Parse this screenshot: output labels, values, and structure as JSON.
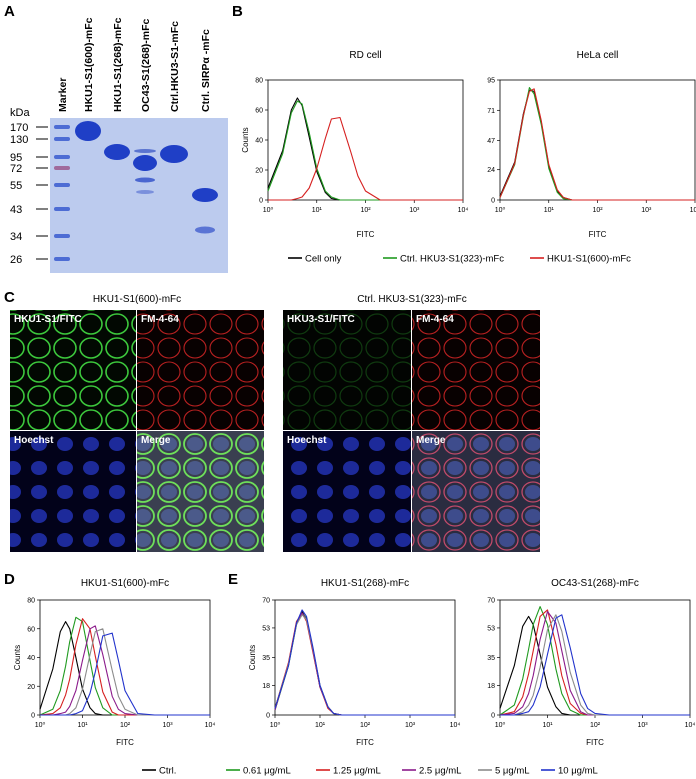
{
  "panel_labels": {
    "a": "A",
    "b": "B",
    "c": "C",
    "d": "D",
    "e": "E"
  },
  "gel": {
    "unit": "kDa",
    "markers": [
      "170",
      "130",
      "95",
      "72",
      "55",
      "43",
      "34",
      "26"
    ],
    "lanes": [
      "Marker",
      "HKU1-S1(600)-mFc",
      "HKU1-S1(268)-mFc",
      "OC43-S1(268)-mFc",
      "Ctrl.HKU3-S1-mFc",
      "Ctrl. SIRPα -mFc"
    ]
  },
  "microscopy": {
    "left_title": "HKU1-S1(600)-mFc",
    "right_title": "Ctrl. HKU3-S1(323)-mFc",
    "left_labels": [
      "HKU1-S1/FITC",
      "FM-4-64",
      "Hoechst",
      "Merge"
    ],
    "right_labels": [
      "HKU3-S1/FITC",
      "FM-4-64",
      "Hoechst",
      "Merge"
    ]
  },
  "chart_data": [
    {
      "type": "line",
      "title": "RD cell",
      "xlabel": "FITC",
      "ylabel": "Counts",
      "log_x": true,
      "x": [
        1,
        2,
        3,
        4,
        5,
        7,
        10,
        15,
        20,
        30,
        50,
        70,
        100,
        200,
        500,
        1000,
        10000
      ],
      "xlim": [
        1,
        10000
      ],
      "xticks": [
        {
          "value": 1,
          "label": "10⁰"
        },
        {
          "value": 10,
          "label": "10¹"
        },
        {
          "value": 100,
          "label": "10²"
        },
        {
          "value": 1000,
          "label": "10³"
        },
        {
          "value": 10000,
          "label": "10⁴"
        }
      ],
      "ylim": [
        0,
        80
      ],
      "yticks": [
        0,
        20,
        40,
        60,
        80
      ],
      "series": [
        {
          "name": "Cell only",
          "color": "#000000",
          "values": [
            8,
            33,
            60,
            68,
            63,
            42,
            19,
            5,
            1,
            0,
            0,
            0,
            0,
            0,
            0,
            0,
            0
          ]
        },
        {
          "name": "Ctrl. HKU3-S1(323)-mFc",
          "color": "#1f9a1f",
          "values": [
            6,
            31,
            58,
            66,
            64,
            45,
            21,
            6,
            2,
            0,
            0,
            0,
            0,
            0,
            0,
            0,
            0
          ]
        },
        {
          "name": "HKU1-S1(600)-mFc",
          "color": "#d62020",
          "values": [
            0,
            0,
            0,
            1,
            2,
            8,
            21,
            41,
            54,
            55,
            32,
            16,
            6,
            0,
            0,
            0,
            0
          ]
        }
      ]
    },
    {
      "type": "line",
      "title": "HeLa cell",
      "xlabel": "FITC",
      "log_x": true,
      "x": [
        1,
        2,
        3,
        4,
        5,
        7,
        10,
        15,
        20,
        30,
        50,
        70,
        100,
        200,
        500,
        1000,
        10000
      ],
      "xlim": [
        1,
        10000
      ],
      "xticks": [
        {
          "value": 1,
          "label": "10⁰"
        },
        {
          "value": 10,
          "label": "10¹"
        },
        {
          "value": 100,
          "label": "10²"
        },
        {
          "value": 1000,
          "label": "10³"
        },
        {
          "value": 10000,
          "label": "10⁴"
        }
      ],
      "ylim": [
        0,
        95
      ],
      "yticks": [
        0,
        24,
        47,
        71,
        95
      ],
      "series": [
        {
          "name": "Cell only",
          "color": "#000000",
          "values": [
            3,
            30,
            68,
            87,
            86,
            62,
            27,
            7,
            2,
            0,
            0,
            0,
            0,
            0,
            0,
            0,
            0
          ]
        },
        {
          "name": "Ctrl. HKU3-S1(323)-mFc",
          "color": "#1f9a1f",
          "values": [
            2,
            28,
            66,
            89,
            84,
            60,
            25,
            6,
            1,
            0,
            0,
            0,
            0,
            0,
            0,
            0,
            0
          ]
        },
        {
          "name": "HKU1-S1(600)-mFc",
          "color": "#d62020",
          "values": [
            2,
            29,
            67,
            86,
            88,
            63,
            28,
            8,
            2,
            0,
            0,
            0,
            0,
            0,
            0,
            0,
            0
          ]
        }
      ]
    },
    {
      "type": "line",
      "title": "HKU1-S1(600)-mFc",
      "xlabel": "FITC",
      "ylabel": "Counts",
      "log_x": true,
      "x": [
        1,
        2,
        3,
        4,
        5,
        7,
        10,
        15,
        20,
        30,
        50,
        70,
        100,
        200,
        500,
        1000,
        10000
      ],
      "xlim": [
        1,
        10000
      ],
      "xticks": [
        {
          "value": 1,
          "label": "10⁰"
        },
        {
          "value": 10,
          "label": "10¹"
        },
        {
          "value": 100,
          "label": "10²"
        },
        {
          "value": 1000,
          "label": "10³"
        },
        {
          "value": 10000,
          "label": "10⁴"
        }
      ],
      "ylim": [
        0,
        80
      ],
      "yticks": [
        0,
        20,
        40,
        60,
        80
      ],
      "series": [
        {
          "name": "Ctrl.",
          "color": "#000000",
          "values": [
            4,
            32,
            58,
            65,
            60,
            40,
            18,
            5,
            1,
            0,
            0,
            0,
            0,
            0,
            0,
            0,
            0
          ]
        },
        {
          "name": "0.61 μg/mL",
          "color": "#1f9a1f",
          "values": [
            0,
            4,
            17,
            34,
            51,
            68,
            65,
            38,
            19,
            5,
            0,
            0,
            0,
            0,
            0,
            0,
            0
          ]
        },
        {
          "name": "1.25 μg/mL",
          "color": "#d62020",
          "values": [
            0,
            1,
            5,
            14,
            25,
            49,
            67,
            60,
            41,
            16,
            2,
            0,
            0,
            0,
            0,
            0,
            0
          ]
        },
        {
          "name": "2.5 μg/mL",
          "color": "#8b1a8b",
          "values": [
            0,
            0,
            1,
            2,
            6,
            17,
            38,
            60,
            62,
            42,
            13,
            4,
            1,
            0,
            0,
            0,
            0
          ]
        },
        {
          "name": "5 μg/mL",
          "color": "#8c8c8c",
          "values": [
            0,
            0,
            0,
            0,
            1,
            5,
            18,
            42,
            58,
            60,
            31,
            13,
            4,
            0,
            0,
            0,
            0
          ]
        },
        {
          "name": "10 μg/mL",
          "color": "#2233cc",
          "values": [
            0,
            0,
            0,
            0,
            0,
            1,
            3,
            15,
            30,
            55,
            57,
            38,
            17,
            1,
            0,
            0,
            0
          ]
        }
      ]
    },
    {
      "type": "line",
      "title": "HKU1-S1(268)-mFc",
      "xlabel": "FITC",
      "ylabel": "Counts",
      "log_x": true,
      "x": [
        1,
        2,
        3,
        4,
        5,
        7,
        10,
        15,
        20,
        30,
        50,
        70,
        100,
        200,
        500,
        1000,
        10000
      ],
      "xlim": [
        1,
        10000
      ],
      "xticks": [
        {
          "value": 1,
          "label": "10⁰"
        },
        {
          "value": 10,
          "label": "10¹"
        },
        {
          "value": 100,
          "label": "10²"
        },
        {
          "value": 1000,
          "label": "10³"
        },
        {
          "value": 10000,
          "label": "10⁴"
        }
      ],
      "ylim": [
        0,
        70
      ],
      "yticks": [
        0,
        18,
        35,
        53,
        70
      ],
      "series": [
        {
          "name": "Ctrl.",
          "color": "#000000",
          "values": [
            4,
            31,
            56,
            63,
            58,
            39,
            17,
            5,
            1,
            0,
            0,
            0,
            0,
            0,
            0,
            0,
            0
          ]
        },
        {
          "name": "0.61 μg/mL",
          "color": "#1f9a1f",
          "values": [
            3,
            30,
            55,
            62,
            59,
            40,
            18,
            5,
            1,
            0,
            0,
            0,
            0,
            0,
            0,
            0,
            0
          ]
        },
        {
          "name": "1.25 μg/mL",
          "color": "#d62020",
          "values": [
            4,
            32,
            57,
            62,
            57,
            38,
            17,
            4,
            1,
            0,
            0,
            0,
            0,
            0,
            0,
            0,
            0
          ]
        },
        {
          "name": "2.5 μg/mL",
          "color": "#8b1a8b",
          "values": [
            3,
            31,
            56,
            62,
            58,
            39,
            17,
            5,
            1,
            0,
            0,
            0,
            0,
            0,
            0,
            0,
            0
          ]
        },
        {
          "name": "5 μg/mL",
          "color": "#8c8c8c",
          "values": [
            4,
            31,
            55,
            61,
            58,
            40,
            18,
            5,
            1,
            0,
            0,
            0,
            0,
            0,
            0,
            0,
            0
          ]
        },
        {
          "name": "10 μg/mL",
          "color": "#2233cc",
          "values": [
            4,
            30,
            56,
            64,
            60,
            41,
            18,
            5,
            1,
            0,
            0,
            0,
            0,
            0,
            0,
            0,
            0
          ]
        }
      ]
    },
    {
      "type": "line",
      "title": "OC43-S1(268)-mFc",
      "xlabel": "FITC",
      "log_x": true,
      "x": [
        1,
        2,
        3,
        4,
        5,
        7,
        10,
        15,
        20,
        30,
        50,
        70,
        100,
        200,
        500,
        1000,
        10000
      ],
      "xlim": [
        1,
        10000
      ],
      "xticks": [
        {
          "value": 1,
          "label": "10⁰"
        },
        {
          "value": 10,
          "label": "10¹"
        },
        {
          "value": 100,
          "label": "10²"
        },
        {
          "value": 1000,
          "label": "10³"
        },
        {
          "value": 10000,
          "label": "10⁴"
        }
      ],
      "ylim": [
        0,
        70
      ],
      "yticks": [
        0,
        18,
        35,
        53,
        70
      ],
      "series": [
        {
          "name": "Ctrl.",
          "color": "#000000",
          "values": [
            4,
            30,
            54,
            60,
            55,
            37,
            17,
            5,
            1,
            0,
            0,
            0,
            0,
            0,
            0,
            0,
            0
          ]
        },
        {
          "name": "0.61 μg/mL",
          "color": "#1f9a1f",
          "values": [
            0,
            6,
            22,
            40,
            55,
            66,
            55,
            28,
            13,
            3,
            0,
            0,
            0,
            0,
            0,
            0,
            0
          ]
        },
        {
          "name": "1.25 μg/mL",
          "color": "#d62020",
          "values": [
            0,
            2,
            11,
            25,
            39,
            60,
            64,
            43,
            24,
            7,
            1,
            0,
            0,
            0,
            0,
            0,
            0
          ]
        },
        {
          "name": "2.5 μg/mL",
          "color": "#8b1a8b",
          "values": [
            0,
            1,
            5,
            13,
            24,
            46,
            63,
            56,
            39,
            15,
            2,
            0,
            0,
            0,
            0,
            0,
            0
          ]
        },
        {
          "name": "5 μg/mL",
          "color": "#8c8c8c",
          "values": [
            0,
            0,
            2,
            6,
            12,
            29,
            52,
            61,
            51,
            26,
            6,
            1,
            0,
            0,
            0,
            0,
            0
          ]
        },
        {
          "name": "10 μg/mL",
          "color": "#2233cc",
          "values": [
            0,
            0,
            1,
            2,
            6,
            17,
            37,
            59,
            61,
            41,
            13,
            4,
            1,
            0,
            0,
            0,
            0
          ]
        }
      ]
    }
  ]
}
